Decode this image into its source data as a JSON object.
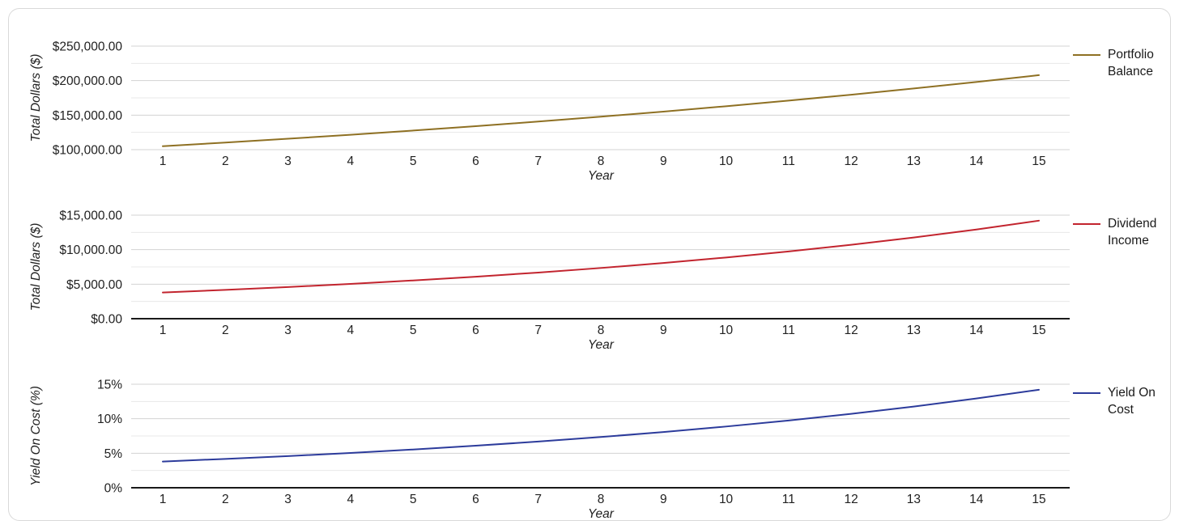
{
  "styles": {
    "background": "#ffffff",
    "card_border": "#d9d9d9",
    "gridline_major": "#d3d3d3",
    "gridline_minor": "#e8e8e8",
    "axis_color": "#1a1a1a",
    "text_color": "#212121"
  },
  "chart_data": [
    {
      "type": "line",
      "x": [
        1,
        2,
        3,
        4,
        5,
        6,
        7,
        8,
        9,
        10,
        11,
        12,
        13,
        14,
        15
      ],
      "series": [
        {
          "name": "Portfolio Balance",
          "color": "#8E7023",
          "values": [
            105000,
            110250,
            115763,
            121551,
            127628,
            134010,
            140710,
            147746,
            155133,
            162889,
            171034,
            179586,
            188565,
            197993,
            207893
          ]
        }
      ],
      "xlabel": "Year",
      "ylabel": "Total Dollars ($)",
      "ylim": [
        100000,
        250000
      ],
      "ytick_step": 50000,
      "yminor_step": 25000,
      "ytick_labels": [
        "$100,000.00",
        "$150,000.00",
        "$200,000.00",
        "$250,000.00"
      ],
      "legend_label": "Portfolio Balance",
      "legend_position": "right",
      "grid": true,
      "dark_axis": false
    },
    {
      "type": "line",
      "x": [
        1,
        2,
        3,
        4,
        5,
        6,
        7,
        8,
        9,
        10,
        11,
        12,
        13,
        14,
        15
      ],
      "series": [
        {
          "name": "Dividend Income",
          "color": "#C2242E",
          "values": [
            3800,
            4175,
            4588,
            5041,
            5538,
            6085,
            6686,
            7346,
            8072,
            8869,
            9745,
            10707,
            11764,
            12926,
            14202
          ]
        }
      ],
      "xlabel": "Year",
      "ylabel": "Total Dollars ($)",
      "ylim": [
        0,
        15000
      ],
      "ytick_step": 5000,
      "yminor_step": 2500,
      "ytick_labels": [
        "$0.00",
        "$5,000.00",
        "$10,000.00",
        "$15,000.00"
      ],
      "legend_label": "Dividend Income",
      "legend_position": "right",
      "grid": true,
      "dark_axis": true
    },
    {
      "type": "line",
      "x": [
        1,
        2,
        3,
        4,
        5,
        6,
        7,
        8,
        9,
        10,
        11,
        12,
        13,
        14,
        15
      ],
      "series": [
        {
          "name": "Yield On Cost",
          "color": "#2C3B9B",
          "values": [
            3.8,
            4.18,
            4.59,
            5.04,
            5.54,
            6.09,
            6.69,
            7.35,
            8.07,
            8.87,
            9.74,
            10.71,
            11.76,
            12.93,
            14.2
          ]
        }
      ],
      "xlabel": "Year",
      "ylabel": "Yield On Cost (%)",
      "ylim": [
        0,
        15
      ],
      "ytick_step": 5,
      "yminor_step": 2.5,
      "ytick_labels": [
        "0%",
        "5%",
        "10%",
        "15%"
      ],
      "legend_label": "Yield On Cost",
      "legend_position": "right",
      "grid": true,
      "dark_axis": true
    }
  ]
}
